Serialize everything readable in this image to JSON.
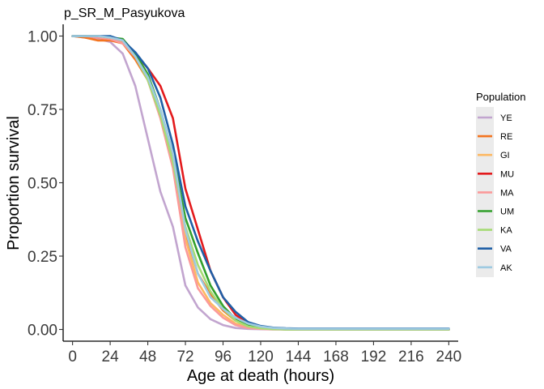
{
  "chart_data": {
    "type": "line",
    "title": "p_SR_M_Pasyukova",
    "xlabel": "Age at death (hours)",
    "ylabel": "Proportion survival",
    "xlim": [
      -6,
      246
    ],
    "ylim": [
      -0.04,
      1.04
    ],
    "x_ticks": [
      0,
      24,
      48,
      72,
      96,
      120,
      144,
      168,
      192,
      216,
      240
    ],
    "y_ticks": [
      0.0,
      0.25,
      0.5,
      0.75,
      1.0
    ],
    "y_tick_labels": [
      "0.00",
      "0.25",
      "0.50",
      "0.75",
      "1.00"
    ],
    "grid": false,
    "legend": {
      "title": "Population",
      "position": "right"
    },
    "x": [
      0,
      8,
      16,
      24,
      32,
      40,
      48,
      56,
      64,
      72,
      80,
      88,
      96,
      104,
      112,
      120,
      128,
      136,
      144,
      168,
      192,
      216,
      240
    ],
    "series": [
      {
        "name": "YE",
        "color": "#C2A5CF",
        "values": [
          1.0,
          0.995,
          0.99,
          0.98,
          0.94,
          0.83,
          0.65,
          0.47,
          0.35,
          0.15,
          0.075,
          0.035,
          0.015,
          0.005,
          0.002,
          0.001,
          0,
          0,
          0,
          0,
          0,
          0,
          0
        ]
      },
      {
        "name": "RE",
        "color": "#F4741F",
        "values": [
          1.0,
          0.995,
          0.985,
          0.985,
          0.975,
          0.92,
          0.85,
          0.73,
          0.58,
          0.33,
          0.19,
          0.12,
          0.065,
          0.03,
          0.015,
          0.005,
          0.002,
          0,
          0,
          0,
          0,
          0,
          0
        ]
      },
      {
        "name": "GI",
        "color": "#FDB863",
        "values": [
          1.0,
          1.0,
          0.995,
          0.99,
          0.98,
          0.93,
          0.86,
          0.74,
          0.57,
          0.31,
          0.16,
          0.09,
          0.05,
          0.02,
          0.01,
          0.005,
          0.002,
          0,
          0,
          0,
          0,
          0,
          0
        ]
      },
      {
        "name": "MU",
        "color": "#E31A1C",
        "values": [
          1.0,
          1.0,
          0.995,
          0.99,
          0.975,
          0.94,
          0.89,
          0.83,
          0.72,
          0.48,
          0.34,
          0.2,
          0.11,
          0.05,
          0.02,
          0.008,
          0.003,
          0.001,
          0,
          0,
          0,
          0,
          0
        ]
      },
      {
        "name": "MA",
        "color": "#FB9A99",
        "values": [
          1.0,
          1.0,
          0.995,
          0.99,
          0.975,
          0.93,
          0.85,
          0.72,
          0.55,
          0.28,
          0.14,
          0.08,
          0.04,
          0.015,
          0.005,
          0.002,
          0,
          0,
          0,
          0,
          0,
          0,
          0
        ]
      },
      {
        "name": "UM",
        "color": "#33A02C",
        "values": [
          1.0,
          1.0,
          1.0,
          0.995,
          0.99,
          0.94,
          0.87,
          0.75,
          0.6,
          0.38,
          0.26,
          0.15,
          0.08,
          0.035,
          0.015,
          0.005,
          0.002,
          0,
          0,
          0,
          0,
          0,
          0
        ]
      },
      {
        "name": "KA",
        "color": "#A6DB74",
        "values": [
          1.0,
          1.0,
          1.0,
          0.995,
          0.985,
          0.93,
          0.85,
          0.73,
          0.57,
          0.35,
          0.22,
          0.13,
          0.07,
          0.03,
          0.01,
          0.004,
          0.001,
          0,
          0,
          0,
          0,
          0,
          0
        ]
      },
      {
        "name": "VA",
        "color": "#1F5FA6",
        "values": [
          1.0,
          1.0,
          1.0,
          1.0,
          0.985,
          0.945,
          0.89,
          0.79,
          0.63,
          0.42,
          0.3,
          0.2,
          0.11,
          0.06,
          0.025,
          0.012,
          0.006,
          0.004,
          0.003,
          0.003,
          0.003,
          0.003,
          0.003
        ]
      },
      {
        "name": "AK",
        "color": "#9ECAE1",
        "values": [
          1.0,
          1.0,
          1.0,
          0.995,
          0.985,
          0.93,
          0.86,
          0.75,
          0.6,
          0.34,
          0.19,
          0.11,
          0.07,
          0.04,
          0.02,
          0.01,
          0.005,
          0.003,
          0.002,
          0.002,
          0.002,
          0.002,
          0.002
        ]
      }
    ]
  }
}
